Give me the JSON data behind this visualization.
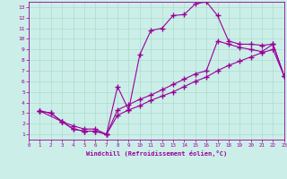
{
  "xlabel": "Windchill (Refroidissement éolien,°C)",
  "bg_color": "#cceee8",
  "grid_color": "#aaddcc",
  "line_color": "#990099",
  "xlim": [
    0,
    23
  ],
  "ylim": [
    1,
    13
  ],
  "xticks": [
    0,
    1,
    2,
    3,
    4,
    5,
    6,
    7,
    8,
    9,
    10,
    11,
    12,
    13,
    14,
    15,
    16,
    17,
    18,
    19,
    20,
    21,
    22,
    23
  ],
  "yticks": [
    1,
    2,
    3,
    4,
    5,
    6,
    7,
    8,
    9,
    10,
    11,
    12,
    13
  ],
  "curve1_x": [
    1,
    2,
    3,
    4,
    5,
    6,
    7,
    8,
    9,
    10,
    11,
    12,
    13,
    14,
    15,
    16,
    17,
    18,
    19,
    20,
    21,
    22,
    23
  ],
  "curve1_y": [
    3.2,
    3.0,
    2.2,
    1.5,
    1.3,
    1.3,
    1.0,
    5.5,
    3.3,
    8.5,
    10.8,
    11.0,
    12.2,
    12.3,
    13.3,
    13.5,
    12.2,
    9.8,
    9.5,
    9.5,
    9.4,
    9.5,
    6.5
  ],
  "curve2_x": [
    1,
    2,
    3,
    4,
    5,
    6,
    7,
    8,
    9,
    10,
    11,
    12,
    13,
    14,
    15,
    16,
    17,
    18,
    19,
    20,
    21,
    22,
    23
  ],
  "curve2_y": [
    3.2,
    3.0,
    2.2,
    1.5,
    1.3,
    1.3,
    1.0,
    3.3,
    3.8,
    4.3,
    4.7,
    5.2,
    5.7,
    6.2,
    6.7,
    7.0,
    9.8,
    9.5,
    9.2,
    9.0,
    8.8,
    9.5,
    6.5
  ],
  "curve3_x": [
    1,
    3,
    4,
    5,
    6,
    7,
    8,
    9,
    10,
    11,
    12,
    13,
    14,
    15,
    16,
    17,
    18,
    19,
    20,
    21,
    22,
    23
  ],
  "curve3_y": [
    3.2,
    2.2,
    1.8,
    1.5,
    1.5,
    1.0,
    2.8,
    3.3,
    3.7,
    4.2,
    4.6,
    5.0,
    5.5,
    6.0,
    6.4,
    7.0,
    7.5,
    7.9,
    8.3,
    8.7,
    9.0,
    6.5
  ],
  "marker_size": 2.5
}
